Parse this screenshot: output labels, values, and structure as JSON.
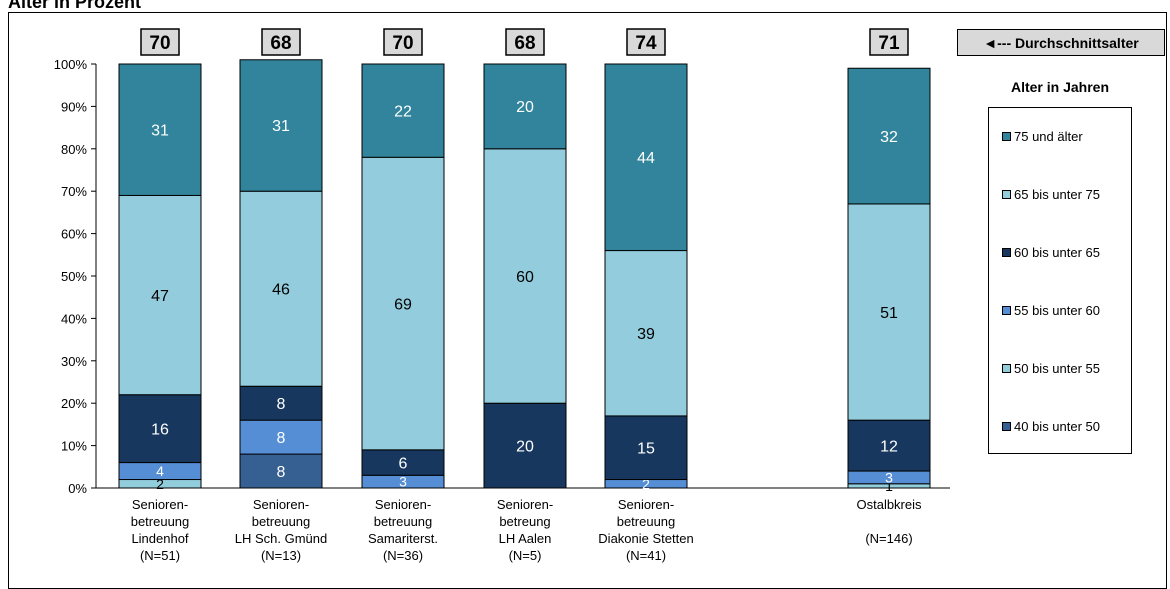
{
  "title": "Alter in Prozent",
  "avg_label": "◄--- Durchschnittsalter",
  "legend_title": "Alter in Jahren",
  "chart_data": {
    "type": "bar",
    "stacked": true,
    "ylim": [
      0,
      100
    ],
    "yticks": [
      "0%",
      "10%",
      "20%",
      "30%",
      "40%",
      "50%",
      "60%",
      "70%",
      "80%",
      "90%",
      "100%"
    ],
    "categories": [
      {
        "lines": [
          "Senioren-",
          "betreuung",
          "Lindenhof",
          "(N=51)"
        ],
        "avg": "70"
      },
      {
        "lines": [
          "Senioren-",
          "betreuung",
          "LH Sch. Gmünd",
          "(N=13)"
        ],
        "avg": "68"
      },
      {
        "lines": [
          "Senioren-",
          "betreuung",
          "Samariterst.",
          "(N=36)"
        ],
        "avg": "70"
      },
      {
        "lines": [
          "Senioren-",
          "betreung",
          "LH Aalen",
          "(N=5)"
        ],
        "avg": "68"
      },
      {
        "lines": [
          "Senioren-",
          "betreuung",
          "Diakonie Stetten",
          "(N=41)"
        ],
        "avg": "74"
      },
      {
        "lines": [
          "Ostalbkreis",
          "",
          "(N=146)"
        ],
        "avg": "71"
      }
    ],
    "series": [
      {
        "name": "40 bis unter 50",
        "color": "#366092",
        "values": [
          0,
          8,
          0,
          0,
          0,
          0
        ]
      },
      {
        "name": "50 bis unter 55",
        "color": "#92cddc",
        "values": [
          2,
          0,
          0,
          0,
          0,
          1
        ]
      },
      {
        "name": "55 bis unter 60",
        "color": "#558ed5",
        "values": [
          4,
          8,
          3,
          0,
          2,
          3
        ]
      },
      {
        "name": "60 bis unter 65",
        "color": "#17375e",
        "values": [
          16,
          8,
          6,
          20,
          15,
          12
        ]
      },
      {
        "name": "65 bis unter 75",
        "color": "#93cddd",
        "values": [
          47,
          46,
          69,
          60,
          39,
          51
        ]
      },
      {
        "name": "75 und älter",
        "color": "#31849b",
        "values": [
          31,
          31,
          22,
          20,
          44,
          32
        ]
      }
    ],
    "legend_order": [
      "75 und älter",
      "65 bis unter 75",
      "60 bis unter 65",
      "55 bis unter 60",
      "50 bis unter 55",
      "40 bis unter 50"
    ],
    "legend_placement": "right",
    "grid": false
  }
}
